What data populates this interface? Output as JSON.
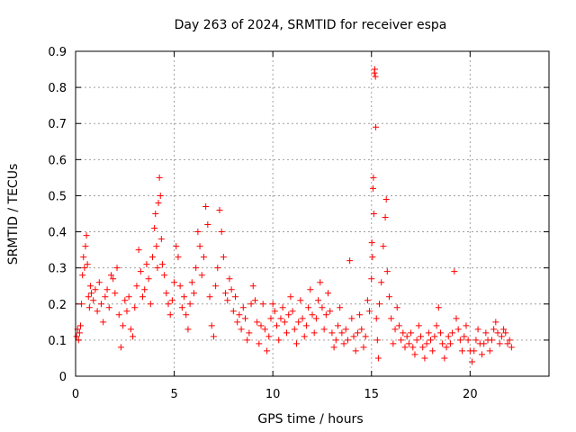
{
  "chart_data": {
    "type": "scatter",
    "title": "Day 263 of 2024, SRMTID for receiver espa",
    "xlabel": "GPS time / hours",
    "ylabel": "SRMTID / TECUs",
    "xlim": [
      0,
      24
    ],
    "ylim": [
      0,
      0.9
    ],
    "xticks": [
      0,
      5,
      10,
      15,
      20
    ],
    "xtick_labels": [
      "0",
      "5",
      "10",
      "15",
      "20"
    ],
    "yticks": [
      0,
      0.1,
      0.2,
      0.3,
      0.4,
      0.5,
      0.6,
      0.7,
      0.8,
      0.9
    ],
    "ytick_labels": [
      "0",
      "0.1",
      "0.2",
      "0.3",
      "0.4",
      "0.5",
      "0.6",
      "0.7",
      "0.8",
      "0.9"
    ],
    "grid": true,
    "marker": "plus",
    "color": "#ff0000",
    "series": [
      {
        "name": "SRMTID",
        "points": [
          [
            0.05,
            0.11
          ],
          [
            0.1,
            0.13
          ],
          [
            0.15,
            0.1
          ],
          [
            0.2,
            0.12
          ],
          [
            0.25,
            0.14
          ],
          [
            0.3,
            0.2
          ],
          [
            0.35,
            0.28
          ],
          [
            0.4,
            0.33
          ],
          [
            0.45,
            0.3
          ],
          [
            0.5,
            0.36
          ],
          [
            0.55,
            0.39
          ],
          [
            0.6,
            0.31
          ],
          [
            0.65,
            0.22
          ],
          [
            0.7,
            0.19
          ],
          [
            0.75,
            0.25
          ],
          [
            0.8,
            0.23
          ],
          [
            0.9,
            0.21
          ],
          [
            1.0,
            0.24
          ],
          [
            1.1,
            0.18
          ],
          [
            1.2,
            0.26
          ],
          [
            1.3,
            0.2
          ],
          [
            1.4,
            0.15
          ],
          [
            1.5,
            0.22
          ],
          [
            1.6,
            0.24
          ],
          [
            1.7,
            0.19
          ],
          [
            1.8,
            0.28
          ],
          [
            1.9,
            0.27
          ],
          [
            2.0,
            0.23
          ],
          [
            2.1,
            0.3
          ],
          [
            2.2,
            0.17
          ],
          [
            2.3,
            0.08
          ],
          [
            2.4,
            0.14
          ],
          [
            2.5,
            0.21
          ],
          [
            2.6,
            0.18
          ],
          [
            2.7,
            0.22
          ],
          [
            2.8,
            0.13
          ],
          [
            2.9,
            0.11
          ],
          [
            3.0,
            0.19
          ],
          [
            3.1,
            0.25
          ],
          [
            3.2,
            0.35
          ],
          [
            3.3,
            0.29
          ],
          [
            3.4,
            0.22
          ],
          [
            3.5,
            0.24
          ],
          [
            3.6,
            0.31
          ],
          [
            3.7,
            0.27
          ],
          [
            3.8,
            0.2
          ],
          [
            3.9,
            0.33
          ],
          [
            4.0,
            0.41
          ],
          [
            4.05,
            0.45
          ],
          [
            4.1,
            0.36
          ],
          [
            4.15,
            0.3
          ],
          [
            4.2,
            0.48
          ],
          [
            4.25,
            0.55
          ],
          [
            4.3,
            0.5
          ],
          [
            4.35,
            0.38
          ],
          [
            4.4,
            0.31
          ],
          [
            4.5,
            0.28
          ],
          [
            4.6,
            0.23
          ],
          [
            4.7,
            0.2
          ],
          [
            4.8,
            0.17
          ],
          [
            4.9,
            0.21
          ],
          [
            5.0,
            0.26
          ],
          [
            5.1,
            0.36
          ],
          [
            5.2,
            0.33
          ],
          [
            5.3,
            0.25
          ],
          [
            5.4,
            0.19
          ],
          [
            5.5,
            0.22
          ],
          [
            5.6,
            0.17
          ],
          [
            5.7,
            0.13
          ],
          [
            5.8,
            0.2
          ],
          [
            5.9,
            0.26
          ],
          [
            6.0,
            0.23
          ],
          [
            6.1,
            0.3
          ],
          [
            6.2,
            0.4
          ],
          [
            6.3,
            0.36
          ],
          [
            6.4,
            0.28
          ],
          [
            6.5,
            0.33
          ],
          [
            6.6,
            0.47
          ],
          [
            6.7,
            0.42
          ],
          [
            6.8,
            0.22
          ],
          [
            6.9,
            0.14
          ],
          [
            7.0,
            0.11
          ],
          [
            7.1,
            0.25
          ],
          [
            7.2,
            0.3
          ],
          [
            7.3,
            0.46
          ],
          [
            7.4,
            0.4
          ],
          [
            7.5,
            0.33
          ],
          [
            7.6,
            0.23
          ],
          [
            7.7,
            0.21
          ],
          [
            7.8,
            0.27
          ],
          [
            7.9,
            0.24
          ],
          [
            8.0,
            0.18
          ],
          [
            8.1,
            0.22
          ],
          [
            8.2,
            0.15
          ],
          [
            8.3,
            0.17
          ],
          [
            8.4,
            0.13
          ],
          [
            8.5,
            0.19
          ],
          [
            8.6,
            0.16
          ],
          [
            8.7,
            0.1
          ],
          [
            8.8,
            0.12
          ],
          [
            8.9,
            0.2
          ],
          [
            9.0,
            0.25
          ],
          [
            9.1,
            0.21
          ],
          [
            9.2,
            0.15
          ],
          [
            9.3,
            0.09
          ],
          [
            9.4,
            0.14
          ],
          [
            9.5,
            0.2
          ],
          [
            9.6,
            0.13
          ],
          [
            9.7,
            0.07
          ],
          [
            9.8,
            0.11
          ],
          [
            9.9,
            0.16
          ],
          [
            10.0,
            0.2
          ],
          [
            10.1,
            0.18
          ],
          [
            10.2,
            0.14
          ],
          [
            10.3,
            0.1
          ],
          [
            10.4,
            0.16
          ],
          [
            10.5,
            0.19
          ],
          [
            10.6,
            0.15
          ],
          [
            10.7,
            0.12
          ],
          [
            10.8,
            0.17
          ],
          [
            10.9,
            0.22
          ],
          [
            11.0,
            0.18
          ],
          [
            11.1,
            0.13
          ],
          [
            11.2,
            0.09
          ],
          [
            11.3,
            0.15
          ],
          [
            11.4,
            0.21
          ],
          [
            11.5,
            0.16
          ],
          [
            11.6,
            0.11
          ],
          [
            11.7,
            0.14
          ],
          [
            11.8,
            0.19
          ],
          [
            11.9,
            0.24
          ],
          [
            12.0,
            0.17
          ],
          [
            12.1,
            0.12
          ],
          [
            12.2,
            0.16
          ],
          [
            12.3,
            0.21
          ],
          [
            12.4,
            0.26
          ],
          [
            12.5,
            0.19
          ],
          [
            12.6,
            0.13
          ],
          [
            12.7,
            0.17
          ],
          [
            12.8,
            0.23
          ],
          [
            12.9,
            0.18
          ],
          [
            13.0,
            0.12
          ],
          [
            13.1,
            0.08
          ],
          [
            13.2,
            0.1
          ],
          [
            13.3,
            0.14
          ],
          [
            13.4,
            0.19
          ],
          [
            13.5,
            0.12
          ],
          [
            13.6,
            0.09
          ],
          [
            13.7,
            0.13
          ],
          [
            13.8,
            0.1
          ],
          [
            13.9,
            0.32
          ],
          [
            14.0,
            0.16
          ],
          [
            14.1,
            0.11
          ],
          [
            14.2,
            0.07
          ],
          [
            14.3,
            0.12
          ],
          [
            14.4,
            0.17
          ],
          [
            14.5,
            0.13
          ],
          [
            14.6,
            0.08
          ],
          [
            14.7,
            0.11
          ],
          [
            14.8,
            0.21
          ],
          [
            14.9,
            0.18
          ],
          [
            15.0,
            0.27
          ],
          [
            15.02,
            0.37
          ],
          [
            15.05,
            0.33
          ],
          [
            15.08,
            0.52
          ],
          [
            15.1,
            0.55
          ],
          [
            15.12,
            0.45
          ],
          [
            15.15,
            0.84
          ],
          [
            15.17,
            0.85
          ],
          [
            15.2,
            0.83
          ],
          [
            15.22,
            0.69
          ],
          [
            15.25,
            0.16
          ],
          [
            15.3,
            0.1
          ],
          [
            15.35,
            0.05
          ],
          [
            15.4,
            0.2
          ],
          [
            15.5,
            0.26
          ],
          [
            15.6,
            0.36
          ],
          [
            15.7,
            0.44
          ],
          [
            15.75,
            0.49
          ],
          [
            15.8,
            0.29
          ],
          [
            15.9,
            0.22
          ],
          [
            16.0,
            0.16
          ],
          [
            16.1,
            0.09
          ],
          [
            16.2,
            0.13
          ],
          [
            16.3,
            0.19
          ],
          [
            16.4,
            0.14
          ],
          [
            16.5,
            0.1
          ],
          [
            16.6,
            0.12
          ],
          [
            16.7,
            0.08
          ],
          [
            16.8,
            0.11
          ],
          [
            16.9,
            0.09
          ],
          [
            17.0,
            0.12
          ],
          [
            17.1,
            0.08
          ],
          [
            17.2,
            0.06
          ],
          [
            17.3,
            0.1
          ],
          [
            17.4,
            0.14
          ],
          [
            17.5,
            0.11
          ],
          [
            17.6,
            0.08
          ],
          [
            17.7,
            0.05
          ],
          [
            17.8,
            0.09
          ],
          [
            17.9,
            0.12
          ],
          [
            18.0,
            0.1
          ],
          [
            18.1,
            0.07
          ],
          [
            18.2,
            0.11
          ],
          [
            18.3,
            0.14
          ],
          [
            18.4,
            0.19
          ],
          [
            18.5,
            0.12
          ],
          [
            18.6,
            0.09
          ],
          [
            18.7,
            0.05
          ],
          [
            18.8,
            0.08
          ],
          [
            18.9,
            0.11
          ],
          [
            19.0,
            0.09
          ],
          [
            19.1,
            0.12
          ],
          [
            19.2,
            0.29
          ],
          [
            19.3,
            0.16
          ],
          [
            19.4,
            0.13
          ],
          [
            19.5,
            0.1
          ],
          [
            19.6,
            0.07
          ],
          [
            19.7,
            0.11
          ],
          [
            19.8,
            0.14
          ],
          [
            19.9,
            0.1
          ],
          [
            20.0,
            0.07
          ],
          [
            20.1,
            0.04
          ],
          [
            20.2,
            0.07
          ],
          [
            20.3,
            0.1
          ],
          [
            20.4,
            0.13
          ],
          [
            20.5,
            0.09
          ],
          [
            20.6,
            0.06
          ],
          [
            20.7,
            0.09
          ],
          [
            20.8,
            0.12
          ],
          [
            20.9,
            0.1
          ],
          [
            21.0,
            0.07
          ],
          [
            21.1,
            0.1
          ],
          [
            21.2,
            0.13
          ],
          [
            21.3,
            0.15
          ],
          [
            21.4,
            0.12
          ],
          [
            21.5,
            0.09
          ],
          [
            21.6,
            0.11
          ],
          [
            21.7,
            0.13
          ],
          [
            21.8,
            0.12
          ],
          [
            21.9,
            0.09
          ],
          [
            22.0,
            0.1
          ],
          [
            22.1,
            0.08
          ]
        ]
      }
    ]
  }
}
